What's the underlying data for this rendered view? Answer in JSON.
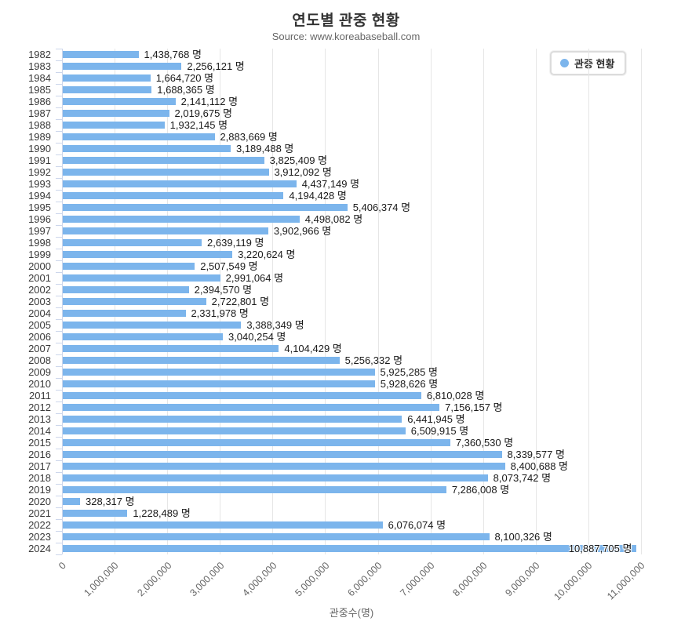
{
  "header": {
    "title": "연도별 관중 현황",
    "subtitle": "Source: www.koreabaseball.com"
  },
  "legend": {
    "label": "관중 현황",
    "marker_color": "#7cb5ec"
  },
  "colors": {
    "bar": "#7cb5ec",
    "axis_line": "#ccd6eb",
    "grid_line": "#e6e6e6",
    "title_text": "#333333",
    "muted_text": "#666666",
    "value_text": "#1a1a1a"
  },
  "x_axis": {
    "title": "관중수(명)",
    "tick_labels": [
      "0",
      "1,000,000",
      "2,000,000",
      "3,000,000",
      "4,000,000",
      "5,000,000",
      "6,000,000",
      "7,000,000",
      "8,000,000",
      "9,000,000",
      "10,000,000",
      "11,000,000"
    ]
  },
  "chart_data": {
    "type": "bar",
    "orientation": "horizontal",
    "title": "연도별 관중 현황",
    "subtitle": "Source: www.koreabaseball.com",
    "xlabel": "관중수(명)",
    "ylabel": "",
    "value_suffix": "명",
    "legend": [
      "관중 현황"
    ],
    "legend_position": "top-right",
    "grid": true,
    "xlim": [
      0,
      11000000
    ],
    "tick_interval": 1000000,
    "categories": [
      "1982",
      "1983",
      "1984",
      "1985",
      "1986",
      "1987",
      "1988",
      "1989",
      "1990",
      "1991",
      "1992",
      "1993",
      "1994",
      "1995",
      "1996",
      "1997",
      "1998",
      "1999",
      "2000",
      "2001",
      "2002",
      "2003",
      "2004",
      "2005",
      "2006",
      "2007",
      "2008",
      "2009",
      "2010",
      "2011",
      "2012",
      "2013",
      "2014",
      "2015",
      "2016",
      "2017",
      "2018",
      "2019",
      "2020",
      "2021",
      "2022",
      "2023",
      "2024"
    ],
    "values": [
      1438768,
      2256121,
      1664720,
      1688365,
      2141112,
      2019675,
      1932145,
      2883669,
      3189488,
      3825409,
      3912092,
      4437149,
      4194428,
      5406374,
      4498082,
      3902966,
      2639119,
      3220624,
      2507549,
      2991064,
      2394570,
      2722801,
      2331978,
      3388349,
      3040254,
      4104429,
      5256332,
      5925285,
      5928626,
      6810028,
      7156157,
      6441945,
      6509915,
      7360530,
      8339577,
      8400688,
      8073742,
      7286008,
      328317,
      1228489,
      6076074,
      8100326,
      10887705
    ]
  }
}
